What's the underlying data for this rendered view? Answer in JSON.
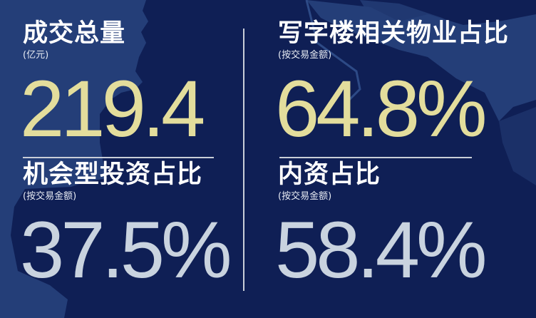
{
  "colors": {
    "background": "#0f1f55",
    "map_land": "#243e78",
    "highlight_value": "#e3dd9c",
    "secondary_value": "#c9d3df",
    "text": "#ffffff"
  },
  "stats": [
    {
      "title": "成交总量",
      "subtitle": "(亿元)",
      "value": "219.4"
    },
    {
      "title": "写字楼相关物业占比",
      "subtitle": "(按交易金额)",
      "value": "64.8%"
    },
    {
      "title": "机会型投资占比",
      "subtitle": "(按交易金额)",
      "value": "37.5%"
    },
    {
      "title": "内资占比",
      "subtitle": "(按交易金额)",
      "value": "58.4%"
    }
  ]
}
